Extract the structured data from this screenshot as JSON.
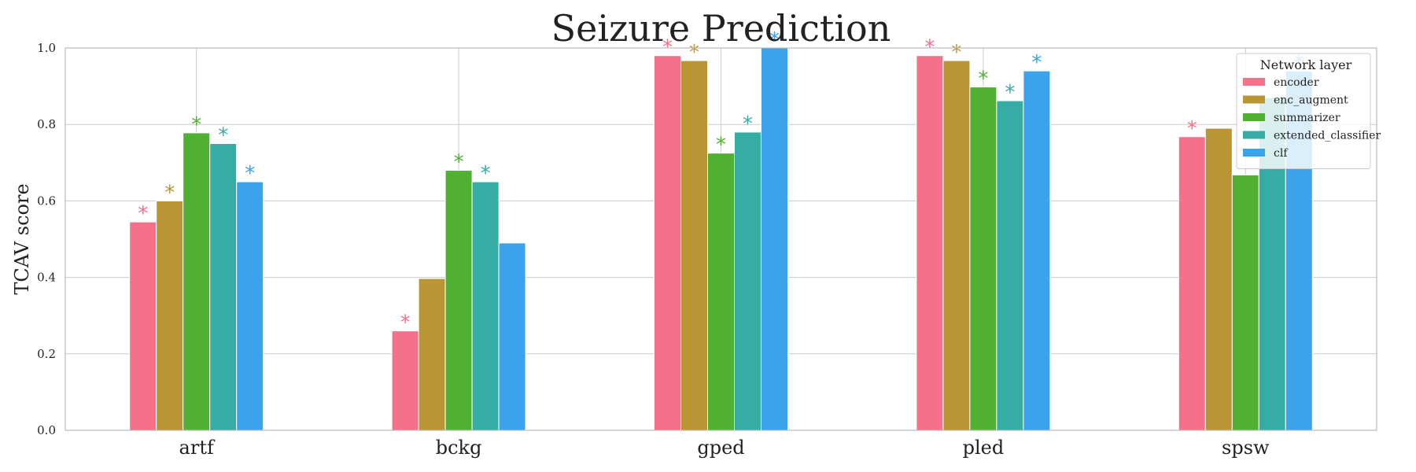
{
  "chart_data": {
    "type": "bar",
    "title": "Seizure Prediction",
    "xlabel": "",
    "ylabel": "TCAV score",
    "ylim": [
      0,
      1.0
    ],
    "yticks": [
      "0.0",
      "0.2",
      "0.4",
      "0.6",
      "0.8",
      "1.0"
    ],
    "grid": true,
    "categories": [
      "artf",
      "bckg",
      "gped",
      "pled",
      "spsw"
    ],
    "legend": {
      "title": "Network layer",
      "placement": "top-right"
    },
    "series": [
      {
        "name": "encoder",
        "color": "#f5718a",
        "values": [
          0.545,
          0.26,
          0.98,
          0.98,
          0.768
        ],
        "significant": [
          true,
          true,
          true,
          true,
          true
        ]
      },
      {
        "name": "enc_augment",
        "color": "#b99534",
        "values": [
          0.6,
          0.397,
          0.967,
          0.967,
          0.79
        ],
        "significant": [
          true,
          false,
          true,
          true,
          false
        ]
      },
      {
        "name": "summarizer",
        "color": "#4fb032",
        "values": [
          0.778,
          0.68,
          0.725,
          0.898,
          0.668
        ],
        "significant": [
          true,
          true,
          true,
          true,
          false
        ]
      },
      {
        "name": "extended_classifier",
        "color": "#36ada4",
        "values": [
          0.75,
          0.65,
          0.78,
          0.862,
          0.87
        ],
        "significant": [
          true,
          true,
          true,
          true,
          false
        ]
      },
      {
        "name": "clf",
        "color": "#3ba3ec",
        "values": [
          0.65,
          0.49,
          1.0,
          0.94,
          0.94
        ],
        "significant": [
          true,
          false,
          true,
          true,
          true
        ]
      }
    ],
    "significance_marker": "*"
  }
}
